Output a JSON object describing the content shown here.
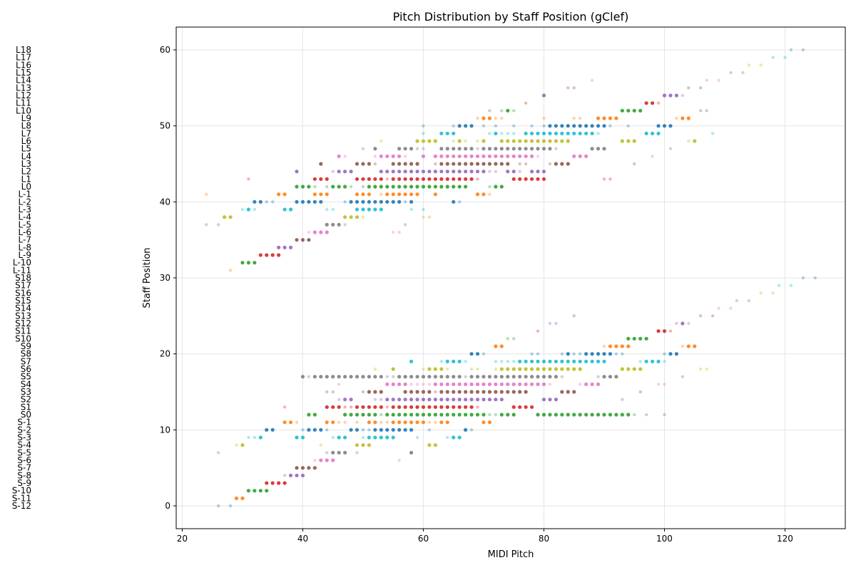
{
  "chart_data": {
    "type": "scatter",
    "title": "Pitch Distribution by Staff Position (gClef)",
    "xlabel": "MIDI Pitch",
    "ylabel": "Staff Position",
    "xlim": [
      19,
      130
    ],
    "ylim": [
      -3,
      63
    ],
    "xticks": [
      20,
      40,
      60,
      80,
      100,
      120
    ],
    "yticks": [
      0,
      10,
      20,
      30,
      40,
      50,
      60
    ],
    "grid": true,
    "row_labels": [
      "S-12",
      "S-11",
      "S-10",
      "S-9",
      "S-8",
      "S-7",
      "S-6",
      "S-5",
      "S-4",
      "S-3",
      "S-2",
      "S-1",
      "S0",
      "S1",
      "S2",
      "S3",
      "S4",
      "S5",
      "S6",
      "S7",
      "S8",
      "S9",
      "S10",
      "S11",
      "S12",
      "S13",
      "S14",
      "S15",
      "S16",
      "S17",
      "S18",
      "L-11",
      "L-10",
      "L-9",
      "L-8",
      "L-7",
      "L-6",
      "L-5",
      "L-4",
      "L-3",
      "L-2",
      "L-1",
      "L0",
      "L1",
      "L2",
      "L3",
      "L4",
      "L5",
      "L6",
      "L7",
      "L8",
      "L9",
      "L10",
      "L11",
      "L12",
      "L13",
      "L14",
      "L15",
      "L16",
      "L17",
      "L18"
    ],
    "palette": [
      "#1f77b4",
      "#ff7f0e",
      "#2ca02c",
      "#d62728",
      "#9467bd",
      "#8c564b",
      "#e377c2",
      "#7f7f7f",
      "#bcbd22",
      "#17becf"
    ],
    "rows": [
      {
        "y": 0,
        "main": [],
        "faint": [
          26,
          28
        ]
      },
      {
        "y": 1,
        "main": [
          29,
          30
        ],
        "faint": []
      },
      {
        "y": 2,
        "main": [
          31,
          32,
          33,
          34
        ],
        "faint": []
      },
      {
        "y": 3,
        "main": [
          34,
          35,
          36,
          37
        ],
        "faint": []
      },
      {
        "y": 4,
        "main": [
          38,
          39,
          40
        ],
        "faint": [
          37
        ]
      },
      {
        "y": 5,
        "main": [
          39,
          40,
          41,
          42
        ],
        "faint": []
      },
      {
        "y": 6,
        "main": [
          43,
          44,
          45
        ],
        "faint": [
          42,
          56
        ]
      },
      {
        "y": 7,
        "main": [
          45,
          46,
          47,
          58
        ],
        "faint": [
          26,
          44,
          49
        ]
      },
      {
        "y": 8,
        "main": [
          30,
          49,
          50,
          51,
          61,
          62
        ],
        "faint": [
          29,
          43
        ]
      },
      {
        "y": 9,
        "main": [
          33,
          39,
          40,
          46,
          47,
          51,
          52,
          53,
          54,
          55,
          65,
          66
        ],
        "faint": [
          31,
          32,
          45,
          50,
          59,
          64
        ]
      },
      {
        "y": 10,
        "main": [
          34,
          35,
          41,
          42,
          43,
          48,
          49,
          52,
          53,
          54,
          55,
          56,
          57,
          58,
          67
        ],
        "faint": [
          40,
          44,
          50,
          51,
          61,
          68
        ]
      },
      {
        "y": 11,
        "main": [
          37,
          38,
          44,
          45,
          51,
          52,
          55,
          56,
          57,
          58,
          59,
          60,
          63,
          64,
          70,
          71
        ],
        "faint": [
          39,
          46,
          47,
          49,
          53,
          54,
          61,
          62
        ]
      },
      {
        "y": 12,
        "main": [
          41,
          42,
          47,
          48,
          49,
          50,
          51,
          52,
          54,
          55,
          56,
          57,
          58,
          59,
          60,
          61,
          62,
          63,
          64,
          65,
          66,
          67,
          68,
          69,
          70,
          73,
          74,
          75,
          79,
          80,
          81,
          82,
          83,
          84,
          85,
          86,
          87,
          88,
          89,
          90,
          91,
          92,
          93,
          94
        ],
        "faint": [
          53,
          71,
          72,
          95,
          97,
          100
        ]
      },
      {
        "y": 13,
        "main": [
          44,
          45,
          46,
          49,
          50,
          51,
          52,
          53,
          55,
          56,
          57,
          58,
          59,
          60,
          61,
          62,
          63,
          64,
          65,
          66,
          67,
          68,
          75,
          76,
          77,
          78
        ],
        "faint": [
          37,
          47,
          48,
          54,
          69
        ]
      },
      {
        "y": 14,
        "main": [
          47,
          48,
          54,
          55,
          56,
          57,
          58,
          59,
          60,
          61,
          62,
          63,
          64,
          65,
          66,
          67,
          68,
          69,
          70,
          71,
          72,
          73,
          80,
          81,
          82
        ],
        "faint": [
          46,
          52,
          53,
          93
        ]
      },
      {
        "y": 15,
        "main": [
          51,
          52,
          53,
          57,
          58,
          59,
          60,
          61,
          63,
          64,
          65,
          66,
          67,
          68,
          69,
          70,
          71,
          72,
          73,
          74,
          75,
          76,
          77,
          83,
          84,
          85
        ],
        "faint": [
          44,
          45,
          50,
          62,
          96
        ]
      },
      {
        "y": 16,
        "main": [
          54,
          55,
          56,
          57,
          62,
          63,
          64,
          65,
          66,
          67,
          68,
          69,
          70,
          71,
          72,
          73,
          74,
          75,
          76,
          77,
          78,
          79,
          80,
          87,
          88,
          89
        ],
        "faint": [
          46,
          58,
          59,
          60,
          61,
          81,
          86,
          99,
          100
        ]
      },
      {
        "y": 17,
        "main": [
          40,
          42,
          43,
          44,
          45,
          46,
          47,
          48,
          49,
          50,
          51,
          52,
          53,
          56,
          57,
          58,
          59,
          60,
          61,
          62,
          63,
          64,
          65,
          66,
          68,
          69,
          70,
          71,
          72,
          73,
          74,
          75,
          76,
          77,
          78,
          79,
          80,
          81,
          82,
          90,
          91,
          92
        ],
        "faint": [
          41,
          54,
          55,
          57,
          67,
          83,
          89,
          103
        ]
      },
      {
        "y": 18,
        "main": [
          55,
          61,
          62,
          63,
          73,
          74,
          75,
          76,
          77,
          78,
          79,
          80,
          81,
          82,
          83,
          84,
          85,
          86,
          93,
          94,
          95,
          96
        ],
        "faint": [
          52,
          60,
          64,
          68,
          69,
          72,
          106,
          107
        ]
      },
      {
        "y": 19,
        "main": [
          58,
          64,
          65,
          66,
          76,
          77,
          78,
          79,
          80,
          81,
          82,
          83,
          84,
          85,
          86,
          87,
          88,
          89,
          90,
          97,
          98,
          99
        ],
        "faint": [
          63,
          67,
          72,
          73,
          74,
          75,
          96,
          100
        ]
      },
      {
        "y": 20,
        "main": [
          68,
          69,
          84,
          87,
          88,
          89,
          90,
          91,
          101,
          102
        ],
        "faint": [
          70,
          78,
          79,
          83,
          85,
          86,
          92,
          93,
          100
        ]
      },
      {
        "y": 21,
        "main": [
          72,
          73,
          91,
          92,
          93,
          94,
          104,
          105
        ],
        "faint": [
          90,
          103
        ]
      },
      {
        "y": 22,
        "main": [
          94,
          95,
          96,
          97
        ],
        "faint": [
          74,
          75
        ]
      },
      {
        "y": 23,
        "main": [
          99,
          100
        ],
        "faint": [
          79,
          101
        ]
      },
      {
        "y": 24,
        "main": [
          103
        ],
        "faint": [
          81,
          82,
          102,
          104
        ]
      },
      {
        "y": 25,
        "main": [],
        "faint": [
          85,
          106,
          108
        ]
      },
      {
        "y": 26,
        "main": [],
        "faint": [
          109,
          111
        ]
      },
      {
        "y": 27,
        "main": [],
        "faint": [
          112,
          114
        ]
      },
      {
        "y": 28,
        "main": [],
        "faint": [
          116,
          118
        ]
      },
      {
        "y": 29,
        "main": [],
        "faint": [
          119,
          121
        ]
      },
      {
        "y": 30,
        "main": [],
        "faint": [
          123,
          125
        ]
      },
      {
        "y": 31,
        "main": [],
        "faint": [
          28
        ]
      },
      {
        "y": 32,
        "main": [
          30,
          31,
          32
        ],
        "faint": []
      },
      {
        "y": 33,
        "main": [
          33,
          34,
          35,
          36
        ],
        "faint": []
      },
      {
        "y": 34,
        "main": [
          36,
          37,
          38
        ],
        "faint": []
      },
      {
        "y": 35,
        "main": [
          39,
          40,
          41
        ],
        "faint": []
      },
      {
        "y": 36,
        "main": [
          42,
          43,
          44
        ],
        "faint": [
          41,
          55,
          56
        ]
      },
      {
        "y": 37,
        "main": [
          44,
          45,
          46
        ],
        "faint": [
          24,
          26,
          47,
          57
        ]
      },
      {
        "y": 38,
        "main": [
          27,
          28,
          47,
          48,
          49
        ],
        "faint": [
          50,
          60,
          61
        ]
      },
      {
        "y": 39,
        "main": [
          31,
          37,
          38,
          49,
          50,
          51,
          52,
          53
        ],
        "faint": [
          30,
          32,
          44,
          45,
          58,
          60
        ]
      },
      {
        "y": 40,
        "main": [
          32,
          33,
          39,
          40,
          41,
          42,
          43,
          48,
          49,
          50,
          51,
          52,
          53,
          54,
          55,
          56,
          58,
          65
        ],
        "faint": [
          34,
          35,
          47,
          57,
          66
        ]
      },
      {
        "y": 41,
        "main": [
          36,
          37,
          42,
          43,
          44,
          49,
          50,
          51,
          54,
          55,
          56,
          57,
          58,
          59,
          62,
          69,
          70
        ],
        "faint": [
          24,
          53,
          71
        ]
      },
      {
        "y": 42,
        "main": [
          39,
          40,
          41,
          45,
          46,
          47,
          51,
          52,
          53,
          54,
          55,
          56,
          57,
          58,
          59,
          60,
          61,
          62,
          63,
          64,
          65,
          66,
          67,
          72,
          73
        ],
        "faint": [
          42,
          44,
          48,
          50,
          71
        ]
      },
      {
        "y": 43,
        "main": [
          42,
          43,
          44,
          49,
          50,
          51,
          52,
          53,
          55,
          56,
          57,
          58,
          59,
          60,
          61,
          62,
          63,
          64,
          65,
          66,
          67,
          68,
          75,
          76,
          77,
          78,
          79,
          80
        ],
        "faint": [
          31,
          54,
          69,
          90,
          91
        ]
      },
      {
        "y": 44,
        "main": [
          39,
          46,
          47,
          48,
          53,
          54,
          55,
          56,
          57,
          58,
          59,
          60,
          61,
          62,
          63,
          64,
          65,
          66,
          67,
          68,
          69,
          70,
          74,
          75,
          78,
          79,
          80
        ],
        "faint": [
          45,
          71,
          72,
          76
        ]
      },
      {
        "y": 45,
        "main": [
          43,
          49,
          50,
          51,
          55,
          56,
          57,
          58,
          59,
          63,
          64,
          65,
          66,
          67,
          68,
          69,
          70,
          71,
          72,
          73,
          74,
          82,
          83,
          84
        ],
        "faint": [
          52,
          62,
          76,
          77,
          81,
          95
        ]
      },
      {
        "y": 46,
        "main": [
          46,
          53,
          54,
          55,
          56,
          60,
          62,
          63,
          64,
          65,
          66,
          67,
          68,
          69,
          70,
          71,
          72,
          73,
          74,
          75,
          76,
          77,
          78,
          85,
          86,
          87
        ],
        "faint": [
          47,
          52,
          57,
          79,
          98
        ]
      },
      {
        "y": 47,
        "main": [
          52,
          56,
          57,
          58,
          63,
          64,
          65,
          66,
          67,
          68,
          70,
          71,
          72,
          73,
          74,
          75,
          76,
          77,
          78,
          79,
          80,
          81,
          88,
          89,
          90
        ],
        "faint": [
          50,
          59,
          60,
          69,
          82,
          101
        ]
      },
      {
        "y": 48,
        "main": [
          59,
          60,
          61,
          62,
          66,
          70,
          73,
          74,
          75,
          76,
          77,
          78,
          79,
          80,
          81,
          82,
          83,
          84,
          93,
          94,
          95,
          105
        ],
        "faint": [
          53,
          65,
          67,
          69,
          104
        ]
      },
      {
        "y": 49,
        "main": [
          63,
          64,
          65,
          72,
          77,
          78,
          79,
          80,
          81,
          82,
          83,
          84,
          85,
          86,
          87,
          88,
          97,
          98,
          99
        ],
        "faint": [
          60,
          71,
          73,
          74,
          75,
          89,
          108
        ]
      },
      {
        "y": 50,
        "main": [
          66,
          67,
          68,
          81,
          82,
          83,
          84,
          85,
          86,
          87,
          88,
          89,
          90,
          99,
          100,
          101
        ],
        "faint": [
          60,
          65,
          70,
          72,
          75,
          78,
          80,
          91,
          94
        ]
      },
      {
        "y": 51,
        "main": [
          70,
          71,
          89,
          90,
          91,
          92,
          103,
          104
        ],
        "faint": [
          69,
          72,
          73,
          80,
          85,
          86,
          102
        ]
      },
      {
        "y": 52,
        "main": [
          74,
          93,
          94,
          95,
          96
        ],
        "faint": [
          71,
          73,
          75,
          106,
          107
        ]
      },
      {
        "y": 53,
        "main": [
          97,
          98
        ],
        "faint": [
          77,
          99
        ]
      },
      {
        "y": 54,
        "main": [
          80,
          100,
          101,
          102
        ],
        "faint": [
          103
        ]
      },
      {
        "y": 55,
        "main": [],
        "faint": [
          84,
          85,
          104,
          106
        ]
      },
      {
        "y": 56,
        "main": [],
        "faint": [
          88,
          107,
          109
        ]
      },
      {
        "y": 57,
        "main": [],
        "faint": [
          111,
          113
        ]
      },
      {
        "y": 58,
        "main": [],
        "faint": [
          114,
          116
        ]
      },
      {
        "y": 59,
        "main": [],
        "faint": [
          118,
          120
        ]
      },
      {
        "y": 60,
        "main": [],
        "faint": [
          121,
          123
        ]
      }
    ]
  }
}
